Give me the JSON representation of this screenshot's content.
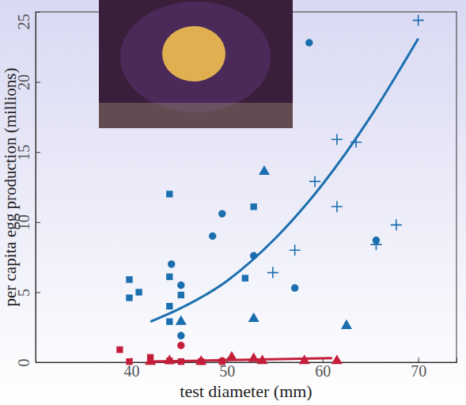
{
  "chart_data": {
    "type": "scatter",
    "xlabel": "test diameter (mm)",
    "ylabel": "per capita egg production (millions)",
    "xlim": [
      30,
      74
    ],
    "ylim": [
      0,
      25
    ],
    "xticks": [
      40,
      50,
      60,
      70
    ],
    "yticks": [
      0,
      5,
      10,
      15,
      20,
      25
    ],
    "series": [
      {
        "type": "scatter",
        "marker": "square",
        "color": "#1b6fae",
        "x": [
          39.8,
          39.8,
          40.8,
          44.0,
          44.0,
          44.0,
          44.0,
          45.2,
          51.9,
          52.8
        ],
        "values": [
          5.9,
          4.6,
          5.0,
          12.0,
          6.1,
          4.0,
          2.9,
          4.8,
          6.0,
          11.1
        ]
      },
      {
        "type": "scatter",
        "marker": "circle",
        "color": "#1b6fae",
        "x": [
          44.2,
          45.2,
          45.2,
          48.5,
          49.5,
          52.8,
          57.1,
          58.6,
          65.6
        ],
        "values": [
          7.0,
          5.5,
          1.9,
          9.0,
          10.6,
          7.6,
          5.3,
          22.8,
          8.7
        ]
      },
      {
        "type": "scatter",
        "marker": "triangle",
        "color": "#1b6fae",
        "x": [
          45.2,
          53.9,
          52.8,
          62.5
        ],
        "values": [
          2.9,
          13.6,
          3.1,
          2.6
        ]
      },
      {
        "type": "scatter",
        "marker": "plus",
        "color": "#1b6fae",
        "x": [
          54.8,
          57.1,
          59.2,
          61.5,
          63.5,
          61.5,
          65.6,
          67.7,
          70.0
        ],
        "values": [
          6.4,
          8.0,
          12.9,
          15.9,
          15.7,
          11.1,
          8.4,
          9.8,
          24.4
        ]
      },
      {
        "type": "scatter",
        "marker": "square",
        "color": "#c41e3a",
        "x": [
          38.8,
          39.8,
          42.0,
          44.0,
          45.2,
          47.3,
          49.5
        ],
        "values": [
          0.9,
          0.05,
          0.35,
          0.1,
          0.05,
          0.05,
          0.05
        ]
      },
      {
        "type": "scatter",
        "marker": "circle",
        "color": "#c41e3a",
        "x": [
          45.2,
          49.5
        ],
        "values": [
          1.2,
          0.1
        ]
      },
      {
        "type": "scatter",
        "marker": "triangle",
        "color": "#c41e3a",
        "x": [
          42.0,
          44.0,
          47.3,
          50.5,
          52.8,
          53.7,
          58.1,
          61.5
        ],
        "values": [
          0.05,
          0.1,
          0.05,
          0.35,
          0.25,
          0.1,
          0.1,
          0.1
        ]
      },
      {
        "type": "line",
        "line_style": "solid",
        "color": "#1b6fae",
        "x": [
          42,
          45,
          50,
          55,
          60,
          65,
          70
        ],
        "values": [
          2.9,
          3.8,
          5.8,
          8.8,
          12.7,
          17.5,
          23.1
        ]
      },
      {
        "type": "line",
        "line_style": "solid",
        "color": "#c41e3a",
        "x": [
          42,
          50,
          61
        ],
        "values": [
          0.05,
          0.15,
          0.3
        ]
      }
    ]
  }
}
